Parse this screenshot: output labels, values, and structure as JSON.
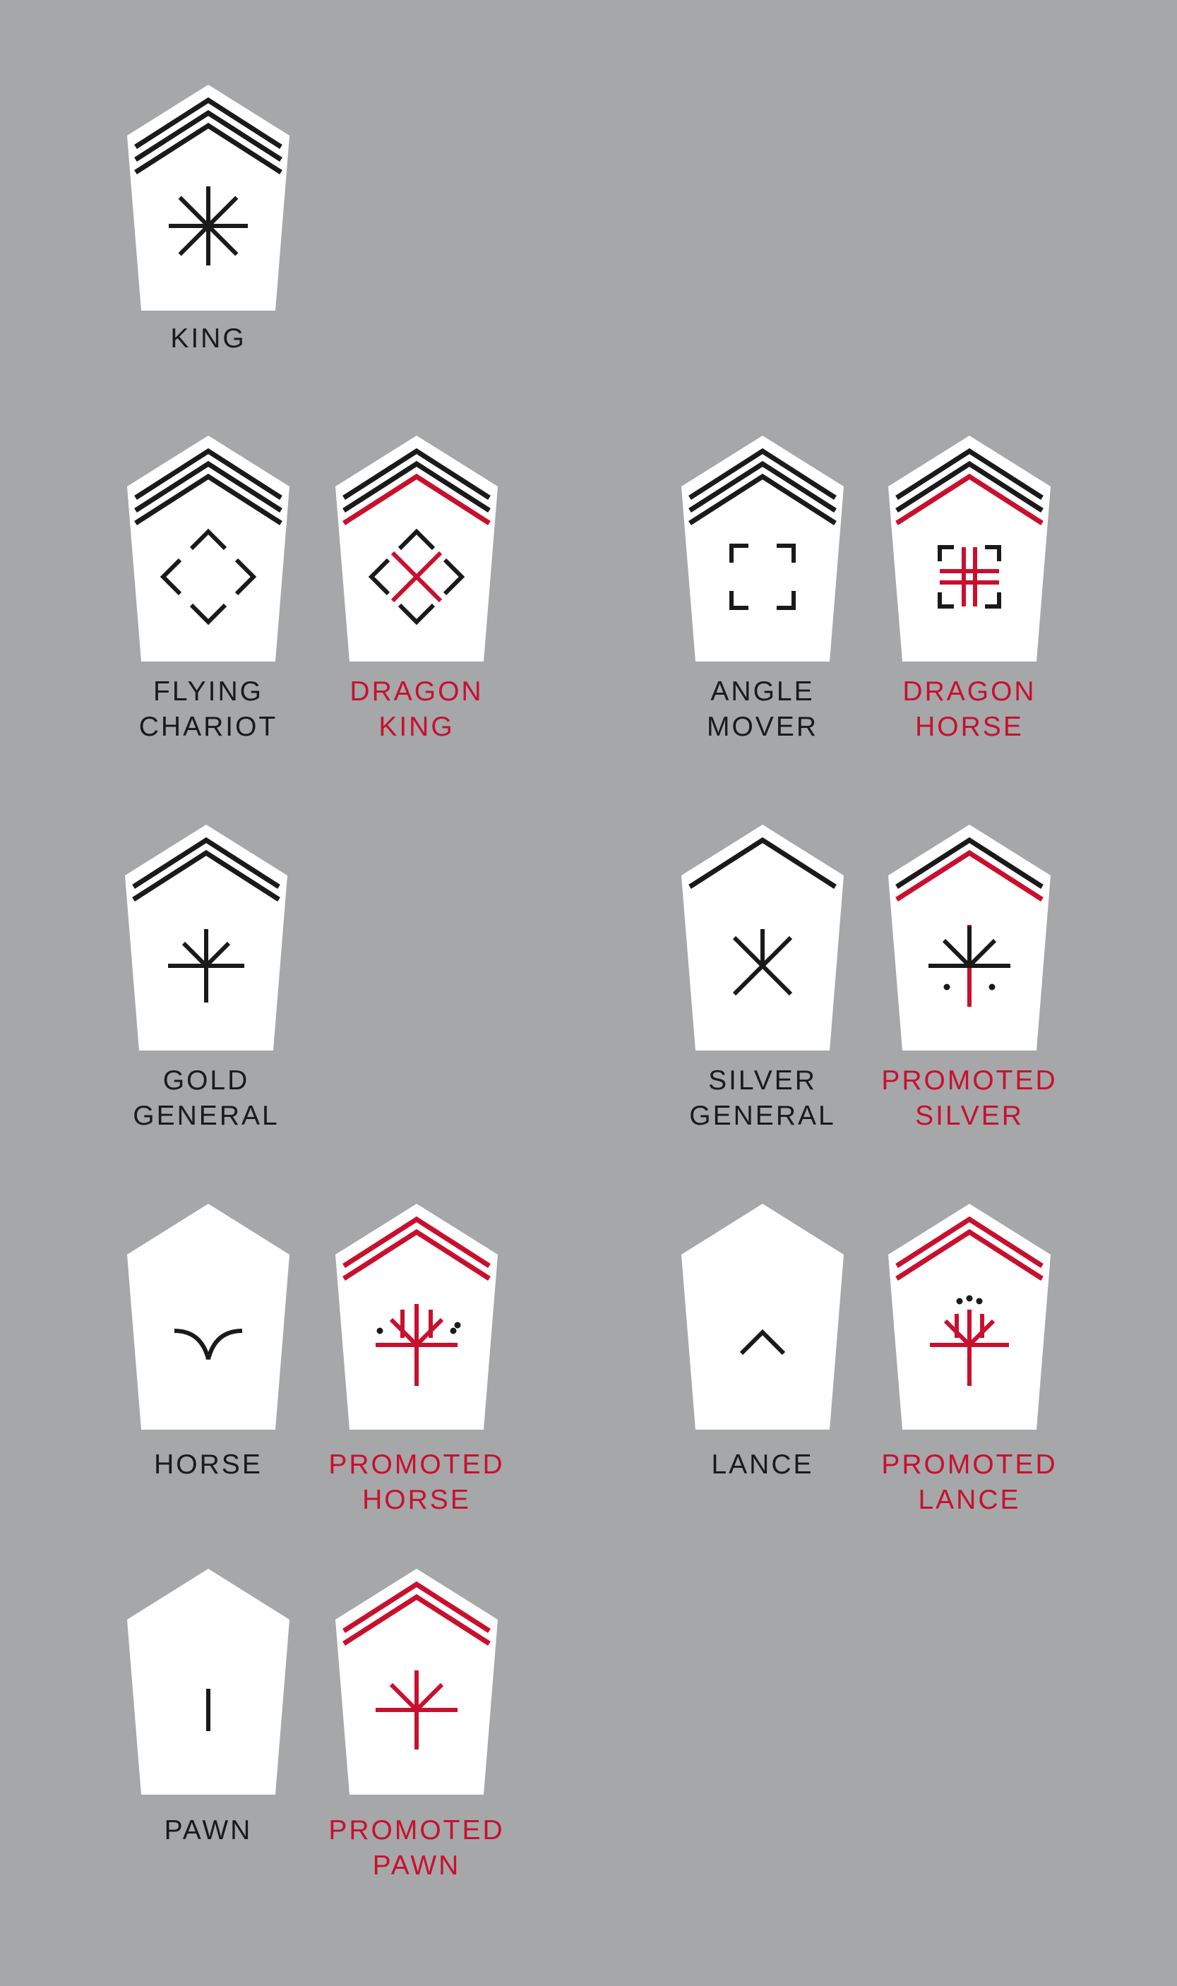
{
  "colors": {
    "background": "#a6a7a9",
    "piece_fill": "#ffffff",
    "black": "#1a1a1a",
    "red": "#c8102e"
  },
  "pieces": [
    {
      "id": "king",
      "label": [
        "KING"
      ],
      "label_color": "black",
      "chevrons": [
        "black",
        "black",
        "black"
      ],
      "symbol": "king"
    },
    {
      "id": "flying-chariot",
      "label": [
        "FLYING",
        "CHARIOT"
      ],
      "label_color": "black",
      "chevrons": [
        "black",
        "black",
        "black"
      ],
      "symbol": "diamond"
    },
    {
      "id": "dragon-king",
      "label": [
        "DRAGON",
        "KING"
      ],
      "label_color": "red",
      "chevrons": [
        "black",
        "black",
        "red"
      ],
      "symbol": "diamond-x"
    },
    {
      "id": "angle-mover",
      "label": [
        "ANGLE",
        "MOVER"
      ],
      "label_color": "black",
      "chevrons": [
        "black",
        "black",
        "black"
      ],
      "symbol": "square"
    },
    {
      "id": "dragon-horse",
      "label": [
        "DRAGON",
        "HORSE"
      ],
      "label_color": "red",
      "chevrons": [
        "black",
        "black",
        "red"
      ],
      "symbol": "square-plus"
    },
    {
      "id": "gold-general",
      "label": [
        "GOLD",
        "GENERAL"
      ],
      "label_color": "black",
      "chevrons": [
        "black",
        "black"
      ],
      "symbol": "gold"
    },
    {
      "id": "silver-general",
      "label": [
        "SILVER",
        "GENERAL"
      ],
      "label_color": "black",
      "chevrons": [
        "black"
      ],
      "symbol": "silver"
    },
    {
      "id": "promoted-silver",
      "label": [
        "PROMOTED",
        "SILVER"
      ],
      "label_color": "red",
      "chevrons": [
        "black",
        "red"
      ],
      "symbol": "promoted-silver"
    },
    {
      "id": "horse",
      "label": [
        "HORSE"
      ],
      "label_color": "black",
      "chevrons": [],
      "symbol": "horse"
    },
    {
      "id": "promoted-horse",
      "label": [
        "PROMOTED",
        "HORSE"
      ],
      "label_color": "red",
      "chevrons": [
        "red",
        "red"
      ],
      "symbol": "promoted-horse"
    },
    {
      "id": "lance",
      "label": [
        "LANCE"
      ],
      "label_color": "black",
      "chevrons": [],
      "symbol": "lance"
    },
    {
      "id": "promoted-lance",
      "label": [
        "PROMOTED",
        "LANCE"
      ],
      "label_color": "red",
      "chevrons": [
        "red",
        "red"
      ],
      "symbol": "promoted-lance"
    },
    {
      "id": "pawn",
      "label": [
        "PAWN"
      ],
      "label_color": "black",
      "chevrons": [],
      "symbol": "pawn"
    },
    {
      "id": "promoted-pawn",
      "label": [
        "PROMOTED",
        "PAWN"
      ],
      "label_color": "red",
      "chevrons": [
        "red",
        "red"
      ],
      "symbol": "promoted-pawn"
    }
  ]
}
